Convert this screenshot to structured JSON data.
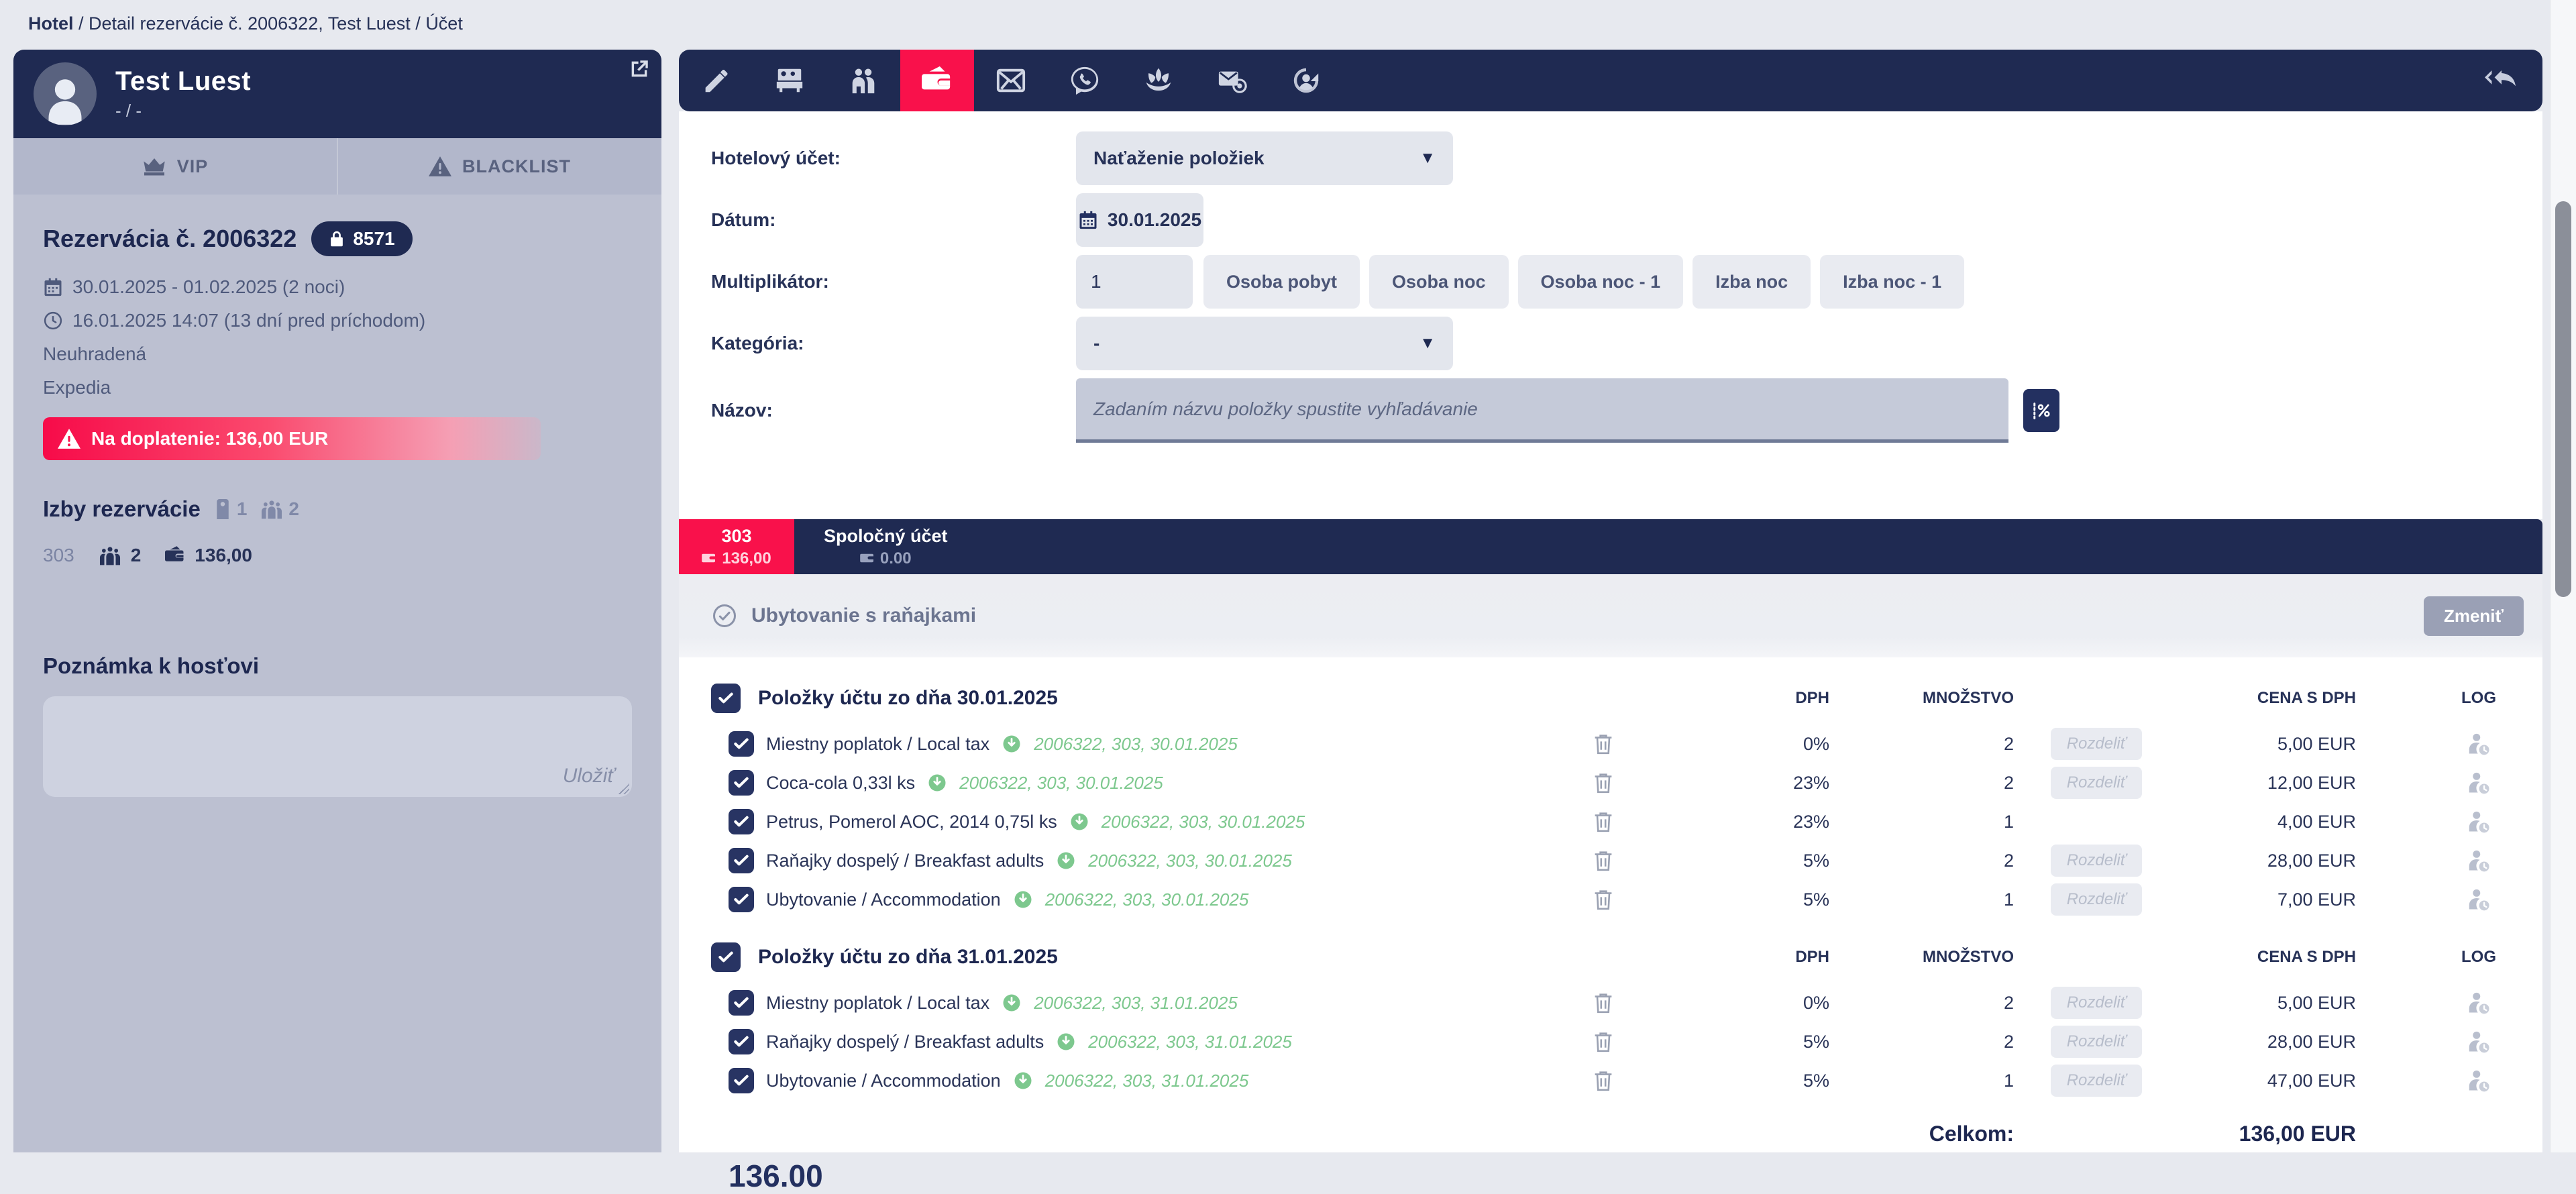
{
  "breadcrumb": {
    "root": "Hotel",
    "middle": "Detail rezervácie č. 2006322, Test Luest",
    "last": "Účet",
    "sep1": " / ",
    "sep2": " / "
  },
  "colors": {
    "navy": "#1f2a52",
    "red": "#f9114b",
    "green": "#7dc88e",
    "sidebar_gray": "#bcc0d1",
    "page_bg": "#e7e9ef"
  },
  "sidebar": {
    "profile": {
      "name": "Test Luest",
      "subtitle": "- / -",
      "avatar_icon": "person-icon",
      "external_icon": "external-link-icon"
    },
    "flags": {
      "vip": "VIP",
      "blacklist": "BLACKLIST"
    },
    "reservation": {
      "title": "Rezervácia č. 2006322",
      "lock_badge": "8571",
      "dates": "30.01.2025 - 01.02.2025 (2 noci)",
      "created": "16.01.2025 14:07 (13 dní pred príchodom)",
      "payment_status": "Neuhradená",
      "source": "Expedia",
      "due_banner": "Na doplatenie: 136,00 EUR"
    },
    "rooms": {
      "title": "Izby rezervácie",
      "rooms_count": "1",
      "guests_count": "2",
      "room_row": {
        "number": "303",
        "guests": "2",
        "amount": "136,00"
      }
    },
    "note": {
      "title": "Poznámka k hosťovi",
      "value": "",
      "save_label": "Uložiť"
    }
  },
  "toolbar": {
    "icons": [
      {
        "name": "edit",
        "active": false
      },
      {
        "name": "rooms",
        "active": false
      },
      {
        "name": "guests",
        "active": false
      },
      {
        "name": "billing",
        "active": true
      },
      {
        "name": "mail",
        "active": false
      },
      {
        "name": "viber",
        "active": false
      },
      {
        "name": "spa",
        "active": false
      },
      {
        "name": "send-email",
        "active": false
      },
      {
        "name": "history",
        "active": false
      }
    ],
    "collapse_icon": "reply-all-icon"
  },
  "form": {
    "hotel_account": {
      "label": "Hotelový účet:",
      "value": "Naťaženie položiek"
    },
    "date": {
      "label": "Dátum:",
      "value": "30.01.2025"
    },
    "multiplier": {
      "label": "Multiplikátor:",
      "value": "1",
      "buttons": [
        "Osoba pobyt",
        "Osoba noc",
        "Osoba noc - 1",
        "Izba noc",
        "Izba noc - 1"
      ]
    },
    "category": {
      "label": "Kategória:",
      "value": "-"
    },
    "name": {
      "label": "Názov:",
      "placeholder": "Zadaním názvu položky spustite vyhľadávanie",
      "voucher_icon": "voucher-percent-icon"
    }
  },
  "account_tabs": [
    {
      "title": "303",
      "amount": "136,00",
      "active": true
    },
    {
      "title": "Spoločný účet",
      "amount": "0.00",
      "active": false
    }
  ],
  "package_bar": {
    "label": "Ubytovanie s raňajkami",
    "change_button": "Zmeniť"
  },
  "columns": {
    "dph": "DPH",
    "qty": "MNOŽSTVO",
    "price": "CENA S DPH",
    "log": "LOG"
  },
  "split_label": "Rozdeliť",
  "tables": [
    {
      "title": "Položky účtu zo dňa 30.01.2025",
      "rows": [
        {
          "name": "Miestny poplatok / Local tax",
          "ref": "2006322, 303, 30.01.2025",
          "dph": "0%",
          "qty": "2",
          "split": true,
          "price": "5,00 EUR"
        },
        {
          "name": "Coca-cola 0,33l ks",
          "ref": "2006322, 303, 30.01.2025",
          "dph": "23%",
          "qty": "2",
          "split": true,
          "price": "12,00 EUR"
        },
        {
          "name": "Petrus, Pomerol AOC, 2014 0,75l ks",
          "ref": "2006322, 303, 30.01.2025",
          "dph": "23%",
          "qty": "1",
          "split": false,
          "price": "4,00 EUR"
        },
        {
          "name": "Raňajky dospelý / Breakfast adults",
          "ref": "2006322, 303, 30.01.2025",
          "dph": "5%",
          "qty": "2",
          "split": true,
          "price": "28,00 EUR"
        },
        {
          "name": "Ubytovanie / Accommodation",
          "ref": "2006322, 303, 30.01.2025",
          "dph": "5%",
          "qty": "1",
          "split": true,
          "price": "7,00 EUR"
        }
      ]
    },
    {
      "title": "Položky účtu zo dňa 31.01.2025",
      "rows": [
        {
          "name": "Miestny poplatok / Local tax",
          "ref": "2006322, 303, 31.01.2025",
          "dph": "0%",
          "qty": "2",
          "split": true,
          "price": "5,00 EUR"
        },
        {
          "name": "Raňajky dospelý / Breakfast adults",
          "ref": "2006322, 303, 31.01.2025",
          "dph": "5%",
          "qty": "2",
          "split": true,
          "price": "28,00 EUR"
        },
        {
          "name": "Ubytovanie / Accommodation",
          "ref": "2006322, 303, 31.01.2025",
          "dph": "5%",
          "qty": "1",
          "split": true,
          "price": "47,00 EUR"
        }
      ]
    }
  ],
  "totals": {
    "label": "Celkom:",
    "value": "136,00 EUR",
    "footer_total": "136.00"
  }
}
